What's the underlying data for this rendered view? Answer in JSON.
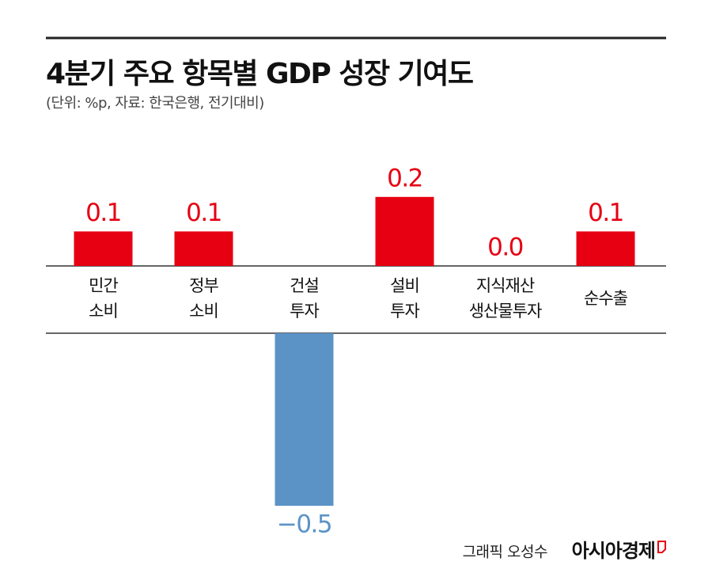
{
  "chart_data": {
    "type": "bar",
    "title": "4분기 주요 항목별 GDP 성장 기여도",
    "subtitle": "(단위: %p, 자료: 한국은행, 전기대비)",
    "categories": [
      "민간\n소비",
      "정부\n소비",
      "건설\n투자",
      "설비\n투자",
      "지식재산\n생산물투자",
      "순수출"
    ],
    "values": [
      0.1,
      0.1,
      -0.5,
      0.2,
      0.0,
      0.1
    ],
    "value_labels": [
      "0.1",
      "0.1",
      "−0.5",
      "0.2",
      "0.0",
      "0.1"
    ],
    "positive_color": "#e60012",
    "negative_color": "#5b93c7",
    "credit": "그래픽 오성수",
    "source_logo": "아시아경제"
  }
}
